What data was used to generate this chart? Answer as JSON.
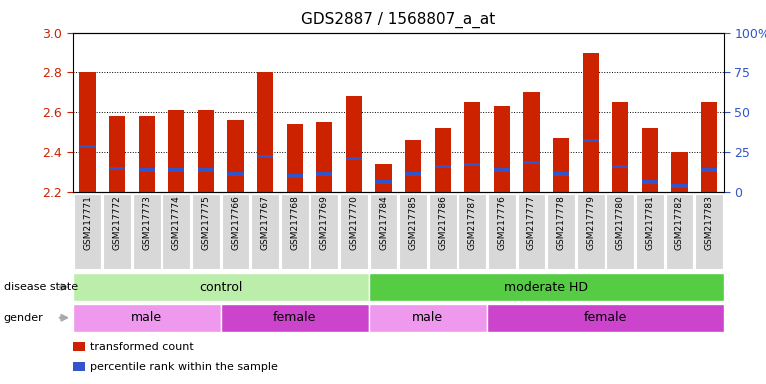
{
  "title": "GDS2887 / 1568807_a_at",
  "samples": [
    "GSM217771",
    "GSM217772",
    "GSM217773",
    "GSM217774",
    "GSM217775",
    "GSM217766",
    "GSM217767",
    "GSM217768",
    "GSM217769",
    "GSM217770",
    "GSM217784",
    "GSM217785",
    "GSM217786",
    "GSM217787",
    "GSM217776",
    "GSM217777",
    "GSM217778",
    "GSM217779",
    "GSM217780",
    "GSM217781",
    "GSM217782",
    "GSM217783"
  ],
  "bar_heights": [
    2.8,
    2.58,
    2.58,
    2.61,
    2.61,
    2.56,
    2.8,
    2.54,
    2.55,
    2.68,
    2.34,
    2.46,
    2.52,
    2.65,
    2.63,
    2.7,
    2.47,
    2.9,
    2.65,
    2.52,
    2.4,
    2.65
  ],
  "blue_positions": [
    2.42,
    2.31,
    2.3,
    2.3,
    2.3,
    2.28,
    2.37,
    2.27,
    2.28,
    2.36,
    2.24,
    2.28,
    2.32,
    2.33,
    2.3,
    2.34,
    2.28,
    2.45,
    2.32,
    2.24,
    2.22,
    2.3
  ],
  "y_min": 2.2,
  "y_max": 3.0,
  "y_ticks": [
    2.2,
    2.4,
    2.6,
    2.8,
    3.0
  ],
  "right_y_ticks_pct": [
    0,
    25,
    50,
    75,
    100
  ],
  "right_y_tick_labels": [
    "0",
    "25",
    "50",
    "75",
    "100%"
  ],
  "bar_color": "#cc2200",
  "blue_color": "#3355cc",
  "disease_state_groups": [
    {
      "label": "control",
      "start": 0,
      "end": 10,
      "color": "#bbeeaa"
    },
    {
      "label": "moderate HD",
      "start": 10,
      "end": 22,
      "color": "#55cc44"
    }
  ],
  "gender_groups": [
    {
      "label": "male",
      "start": 0,
      "end": 5,
      "color": "#ee99ee"
    },
    {
      "label": "female",
      "start": 5,
      "end": 10,
      "color": "#cc44cc"
    },
    {
      "label": "male",
      "start": 10,
      "end": 14,
      "color": "#ee99ee"
    },
    {
      "label": "female",
      "start": 14,
      "end": 22,
      "color": "#cc44cc"
    }
  ],
  "legend_items": [
    {
      "label": "transformed count",
      "color": "#cc2200"
    },
    {
      "label": "percentile rank within the sample",
      "color": "#3355cc"
    }
  ],
  "bar_width": 0.55,
  "bg_color": "#ffffff",
  "tick_label_color_left": "#cc2200",
  "tick_label_color_right": "#3355cc",
  "ax_bg_color": "#ffffff",
  "label_arrow_color": "#aaaaaa"
}
